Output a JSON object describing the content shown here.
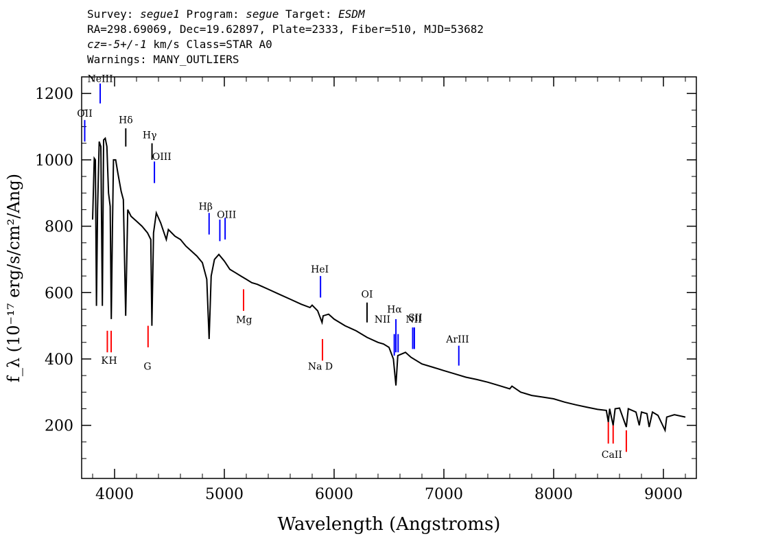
{
  "header": {
    "survey_label": "Survey:",
    "survey": "segue1",
    "program_label": "Program:",
    "program": "segue",
    "target_label": "Target:",
    "target": "ESDM",
    "line2": "RA=298.69069, Dec=19.62897, Plate=2333, Fiber=510, MJD=53682",
    "cz_label": "cz=",
    "cz_value": "-5+/-1",
    "cz_unit_class": "km/s Class=STAR A0",
    "warnings": "Warnings: MANY_OUTLIERS"
  },
  "chart_data": {
    "type": "line",
    "xlabel": "Wavelength (Angstroms)",
    "ylabel": "f_λ (10⁻¹⁷ erg/s/cm²/Ang)",
    "xlim": [
      3700,
      9300
    ],
    "ylim": [
      40,
      1250
    ],
    "xticks": [
      4000,
      5000,
      6000,
      7000,
      8000,
      9000
    ],
    "yticks": [
      200,
      400,
      600,
      800,
      1000
    ],
    "grid": false,
    "series": [
      {
        "color": "#000000",
        "points": [
          [
            3800,
            820
          ],
          [
            3815,
            1005
          ],
          [
            3825,
            1000
          ],
          [
            3835,
            560
          ],
          [
            3845,
            850
          ],
          [
            3860,
            1055
          ],
          [
            3875,
            1040
          ],
          [
            3889,
            560
          ],
          [
            3900,
            1060
          ],
          [
            3915,
            1065
          ],
          [
            3930,
            1040
          ],
          [
            3945,
            900
          ],
          [
            3960,
            860
          ],
          [
            3970,
            520
          ],
          [
            3980,
            780
          ],
          [
            3990,
            1000
          ],
          [
            4010,
            1000
          ],
          [
            4030,
            960
          ],
          [
            4060,
            905
          ],
          [
            4080,
            880
          ],
          [
            4101,
            530
          ],
          [
            4120,
            850
          ],
          [
            4150,
            830
          ],
          [
            4200,
            815
          ],
          [
            4250,
            800
          ],
          [
            4300,
            780
          ],
          [
            4330,
            760
          ],
          [
            4340,
            500
          ],
          [
            4355,
            780
          ],
          [
            4380,
            840
          ],
          [
            4420,
            810
          ],
          [
            4471,
            760
          ],
          [
            4490,
            790
          ],
          [
            4550,
            770
          ],
          [
            4600,
            760
          ],
          [
            4650,
            740
          ],
          [
            4700,
            725
          ],
          [
            4750,
            710
          ],
          [
            4800,
            690
          ],
          [
            4840,
            640
          ],
          [
            4861,
            460
          ],
          [
            4880,
            650
          ],
          [
            4910,
            700
          ],
          [
            4950,
            715
          ],
          [
            5000,
            695
          ],
          [
            5050,
            670
          ],
          [
            5100,
            660
          ],
          [
            5150,
            650
          ],
          [
            5200,
            640
          ],
          [
            5250,
            630
          ],
          [
            5300,
            625
          ],
          [
            5400,
            610
          ],
          [
            5500,
            595
          ],
          [
            5600,
            580
          ],
          [
            5700,
            565
          ],
          [
            5780,
            555
          ],
          [
            5800,
            562
          ],
          [
            5850,
            545
          ],
          [
            5890,
            510
          ],
          [
            5900,
            530
          ],
          [
            5950,
            535
          ],
          [
            6000,
            520
          ],
          [
            6100,
            500
          ],
          [
            6200,
            485
          ],
          [
            6300,
            465
          ],
          [
            6400,
            450
          ],
          [
            6450,
            445
          ],
          [
            6500,
            435
          ],
          [
            6540,
            400
          ],
          [
            6563,
            320
          ],
          [
            6580,
            410
          ],
          [
            6650,
            420
          ],
          [
            6700,
            405
          ],
          [
            6800,
            385
          ],
          [
            6900,
            375
          ],
          [
            7000,
            365
          ],
          [
            7100,
            355
          ],
          [
            7200,
            345
          ],
          [
            7300,
            338
          ],
          [
            7400,
            330
          ],
          [
            7500,
            320
          ],
          [
            7600,
            310
          ],
          [
            7620,
            318
          ],
          [
            7700,
            300
          ],
          [
            7800,
            290
          ],
          [
            7900,
            285
          ],
          [
            8000,
            280
          ],
          [
            8100,
            270
          ],
          [
            8200,
            262
          ],
          [
            8300,
            255
          ],
          [
            8400,
            248
          ],
          [
            8480,
            245
          ],
          [
            8498,
            210
          ],
          [
            8510,
            250
          ],
          [
            8542,
            200
          ],
          [
            8560,
            250
          ],
          [
            8600,
            252
          ],
          [
            8662,
            195
          ],
          [
            8680,
            250
          ],
          [
            8750,
            240
          ],
          [
            8780,
            200
          ],
          [
            8800,
            240
          ],
          [
            8850,
            235
          ],
          [
            8870,
            195
          ],
          [
            8900,
            240
          ],
          [
            8950,
            230
          ],
          [
            9015,
            185
          ],
          [
            9030,
            225
          ],
          [
            9100,
            232
          ],
          [
            9200,
            225
          ]
        ]
      }
    ],
    "lines": [
      {
        "label": "OII",
        "wave": 3728,
        "color": "blue",
        "y0": 1055,
        "y1": 1120,
        "lx": 3728,
        "ly": 1130
      },
      {
        "label": "NeIII",
        "wave": 3869,
        "color": "blue",
        "y0": 1170,
        "y1": 1230,
        "lx": 3869,
        "ly": 1235
      },
      {
        "label": "Hδ",
        "wave": 4102,
        "color": "black",
        "y0": 1040,
        "y1": 1095,
        "lx": 4102,
        "ly": 1110
      },
      {
        "label": "Hγ",
        "wave": 4341,
        "color": "black",
        "y0": 1000,
        "y1": 1050,
        "lx": 4320,
        "ly": 1065
      },
      {
        "label": "OIII",
        "wave": 4363,
        "color": "blue",
        "y0": 930,
        "y1": 995,
        "lx": 4430,
        "ly": 1000
      },
      {
        "label": "Hβ",
        "wave": 4861,
        "color": "blue",
        "y0": 775,
        "y1": 840,
        "lx": 4830,
        "ly": 850
      },
      {
        "label": "OIII",
        "wave": 4959,
        "color": "blue",
        "y0": 755,
        "y1": 820,
        "lx": 5020,
        "ly": 825
      },
      {
        "label": "",
        "wave": 5007,
        "color": "blue",
        "y0": 760,
        "y1": 825,
        "lx": 5007,
        "ly": 825
      },
      {
        "label": "HeI",
        "wave": 5876,
        "color": "blue",
        "y0": 585,
        "y1": 650,
        "lx": 5870,
        "ly": 660
      },
      {
        "label": "OI",
        "wave": 6300,
        "color": "black",
        "y0": 510,
        "y1": 570,
        "lx": 6300,
        "ly": 585
      },
      {
        "label": "NII",
        "wave": 6548,
        "color": "blue",
        "y0": 410,
        "y1": 475,
        "lx": 6440,
        "ly": 510
      },
      {
        "label": "Hα",
        "wave": 6563,
        "color": "blue",
        "y0": 420,
        "y1": 520,
        "lx": 6550,
        "ly": 540
      },
      {
        "label": "NII",
        "wave": 6583,
        "color": "blue",
        "y0": 420,
        "y1": 475,
        "lx": 6725,
        "ly": 510
      },
      {
        "label": "SII",
        "wave": 6716,
        "color": "blue",
        "y0": 430,
        "y1": 495,
        "lx": 6740,
        "ly": 515
      },
      {
        "label": "",
        "wave": 6731,
        "color": "blue",
        "y0": 430,
        "y1": 495,
        "lx": 6731,
        "ly": 495
      },
      {
        "label": "ArIII",
        "wave": 7136,
        "color": "blue",
        "y0": 380,
        "y1": 440,
        "lx": 7125,
        "ly": 450
      },
      {
        "label": "K",
        "wave": 3934,
        "color": "red",
        "y0": 420,
        "y1": 485,
        "lx": 3910,
        "ly": 385
      },
      {
        "label": "H",
        "wave": 3969,
        "color": "red",
        "y0": 420,
        "y1": 485,
        "lx": 3985,
        "ly": 385
      },
      {
        "label": "G",
        "wave": 4305,
        "color": "red",
        "y0": 435,
        "y1": 500,
        "lx": 4300,
        "ly": 368
      },
      {
        "label": "Mg",
        "wave": 5175,
        "color": "red",
        "y0": 545,
        "y1": 610,
        "lx": 5180,
        "ly": 508
      },
      {
        "label": "Na D",
        "wave": 5894,
        "color": "red",
        "y0": 395,
        "y1": 460,
        "lx": 5875,
        "ly": 368
      },
      {
        "label": "",
        "wave": 8498,
        "color": "red",
        "y0": 145,
        "y1": 210,
        "lx": 8498,
        "ly": 145
      },
      {
        "label": "CaII",
        "wave": 8542,
        "color": "red",
        "y0": 145,
        "y1": 210,
        "lx": 8530,
        "ly": 102
      },
      {
        "label": "",
        "wave": 8662,
        "color": "red",
        "y0": 120,
        "y1": 185,
        "lx": 8662,
        "ly": 120
      }
    ]
  }
}
